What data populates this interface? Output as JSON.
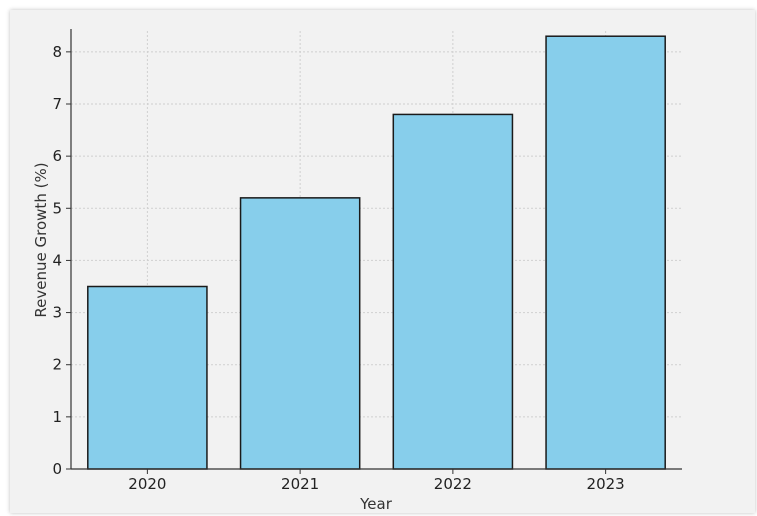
{
  "chart_data": {
    "type": "bar",
    "categories": [
      "2020",
      "2021",
      "2022",
      "2023"
    ],
    "values": [
      3.5,
      5.2,
      6.8,
      8.3
    ],
    "xlabel": "Year",
    "ylabel": "Revenue Growth (%)",
    "ylim": [
      0,
      8.4
    ],
    "yticks": [
      0,
      1,
      2,
      3,
      4,
      5,
      6,
      7,
      8
    ],
    "grid": true,
    "colors": {
      "bar": "#87CEEB",
      "bar_edge": "#1a1a1a",
      "grid": "#cfcfcf",
      "axis": "#333333"
    }
  }
}
